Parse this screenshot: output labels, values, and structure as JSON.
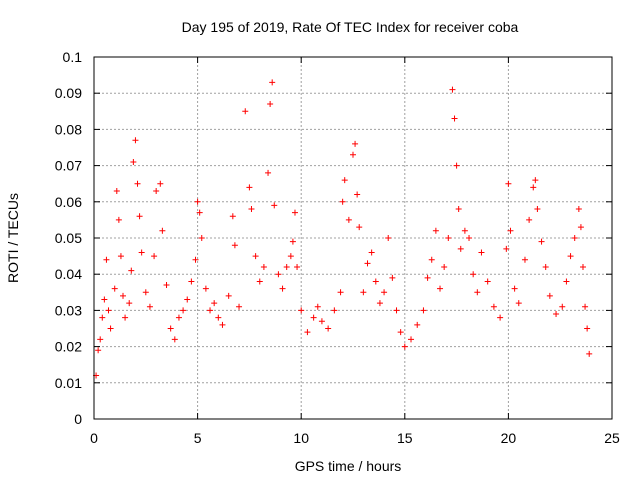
{
  "chart_data": {
    "type": "scatter",
    "title": "Day 195 of 2019, Rate Of TEC Index for receiver coba",
    "xlabel": "GPS time / hours",
    "ylabel": "ROTI / TECUs",
    "xlim": [
      0,
      25
    ],
    "ylim": [
      0,
      0.1
    ],
    "xticks": [
      0,
      5,
      10,
      15,
      20,
      25
    ],
    "yticks": [
      0,
      0.01,
      0.02,
      0.03,
      0.04,
      0.05,
      0.06,
      0.07,
      0.08,
      0.09,
      0.1
    ],
    "grid": true,
    "marker": "+",
    "series": [
      {
        "name": "ROTI",
        "color": "#ff0000",
        "points": [
          [
            0.1,
            0.012
          ],
          [
            0.2,
            0.019
          ],
          [
            0.3,
            0.022
          ],
          [
            0.4,
            0.028
          ],
          [
            0.5,
            0.033
          ],
          [
            0.6,
            0.044
          ],
          [
            0.7,
            0.03
          ],
          [
            0.8,
            0.025
          ],
          [
            1.0,
            0.036
          ],
          [
            1.1,
            0.063
          ],
          [
            1.2,
            0.055
          ],
          [
            1.3,
            0.045
          ],
          [
            1.4,
            0.034
          ],
          [
            1.5,
            0.028
          ],
          [
            1.7,
            0.032
          ],
          [
            1.8,
            0.041
          ],
          [
            1.9,
            0.071
          ],
          [
            2.0,
            0.077
          ],
          [
            2.1,
            0.065
          ],
          [
            2.2,
            0.056
          ],
          [
            2.3,
            0.046
          ],
          [
            2.5,
            0.035
          ],
          [
            2.7,
            0.031
          ],
          [
            2.9,
            0.045
          ],
          [
            3.0,
            0.063
          ],
          [
            3.2,
            0.065
          ],
          [
            3.3,
            0.052
          ],
          [
            3.5,
            0.037
          ],
          [
            3.7,
            0.025
          ],
          [
            3.9,
            0.022
          ],
          [
            4.1,
            0.028
          ],
          [
            4.3,
            0.03
          ],
          [
            4.5,
            0.033
          ],
          [
            4.7,
            0.038
          ],
          [
            4.9,
            0.044
          ],
          [
            5.0,
            0.06
          ],
          [
            5.1,
            0.057
          ],
          [
            5.2,
            0.05
          ],
          [
            5.4,
            0.036
          ],
          [
            5.6,
            0.03
          ],
          [
            5.8,
            0.032
          ],
          [
            6.0,
            0.028
          ],
          [
            6.2,
            0.026
          ],
          [
            6.5,
            0.034
          ],
          [
            6.7,
            0.056
          ],
          [
            6.8,
            0.048
          ],
          [
            7.0,
            0.031
          ],
          [
            7.3,
            0.085
          ],
          [
            7.5,
            0.064
          ],
          [
            7.6,
            0.058
          ],
          [
            7.8,
            0.045
          ],
          [
            8.0,
            0.038
          ],
          [
            8.2,
            0.042
          ],
          [
            8.4,
            0.068
          ],
          [
            8.5,
            0.087
          ],
          [
            8.6,
            0.093
          ],
          [
            8.7,
            0.059
          ],
          [
            8.9,
            0.04
          ],
          [
            9.1,
            0.036
          ],
          [
            9.3,
            0.042
          ],
          [
            9.5,
            0.045
          ],
          [
            9.6,
            0.049
          ],
          [
            9.7,
            0.057
          ],
          [
            9.8,
            0.042
          ],
          [
            10.0,
            0.03
          ],
          [
            10.3,
            0.024
          ],
          [
            10.6,
            0.028
          ],
          [
            10.8,
            0.031
          ],
          [
            11.0,
            0.027
          ],
          [
            11.3,
            0.025
          ],
          [
            11.6,
            0.03
          ],
          [
            11.9,
            0.035
          ],
          [
            12.0,
            0.06
          ],
          [
            12.1,
            0.066
          ],
          [
            12.3,
            0.055
          ],
          [
            12.5,
            0.073
          ],
          [
            12.6,
            0.076
          ],
          [
            12.7,
            0.062
          ],
          [
            12.8,
            0.053
          ],
          [
            13.0,
            0.035
          ],
          [
            13.2,
            0.043
          ],
          [
            13.4,
            0.046
          ],
          [
            13.6,
            0.038
          ],
          [
            13.8,
            0.032
          ],
          [
            14.0,
            0.035
          ],
          [
            14.2,
            0.05
          ],
          [
            14.4,
            0.039
          ],
          [
            14.6,
            0.03
          ],
          [
            14.8,
            0.024
          ],
          [
            15.0,
            0.02
          ],
          [
            15.3,
            0.022
          ],
          [
            15.6,
            0.026
          ],
          [
            15.9,
            0.03
          ],
          [
            16.1,
            0.039
          ],
          [
            16.3,
            0.044
          ],
          [
            16.5,
            0.052
          ],
          [
            16.7,
            0.036
          ],
          [
            16.9,
            0.042
          ],
          [
            17.1,
            0.05
          ],
          [
            17.3,
            0.091
          ],
          [
            17.4,
            0.083
          ],
          [
            17.5,
            0.07
          ],
          [
            17.6,
            0.058
          ],
          [
            17.7,
            0.047
          ],
          [
            17.9,
            0.052
          ],
          [
            18.1,
            0.05
          ],
          [
            18.3,
            0.04
          ],
          [
            18.5,
            0.035
          ],
          [
            18.7,
            0.046
          ],
          [
            19.0,
            0.038
          ],
          [
            19.3,
            0.031
          ],
          [
            19.6,
            0.028
          ],
          [
            19.9,
            0.047
          ],
          [
            20.0,
            0.065
          ],
          [
            20.1,
            0.052
          ],
          [
            20.3,
            0.036
          ],
          [
            20.5,
            0.032
          ],
          [
            20.8,
            0.044
          ],
          [
            21.0,
            0.055
          ],
          [
            21.2,
            0.064
          ],
          [
            21.3,
            0.066
          ],
          [
            21.4,
            0.058
          ],
          [
            21.6,
            0.049
          ],
          [
            21.8,
            0.042
          ],
          [
            22.0,
            0.034
          ],
          [
            22.3,
            0.029
          ],
          [
            22.6,
            0.031
          ],
          [
            22.8,
            0.038
          ],
          [
            23.0,
            0.045
          ],
          [
            23.2,
            0.05
          ],
          [
            23.4,
            0.058
          ],
          [
            23.5,
            0.053
          ],
          [
            23.6,
            0.042
          ],
          [
            23.7,
            0.031
          ],
          [
            23.8,
            0.025
          ],
          [
            23.9,
            0.018
          ]
        ]
      }
    ]
  }
}
